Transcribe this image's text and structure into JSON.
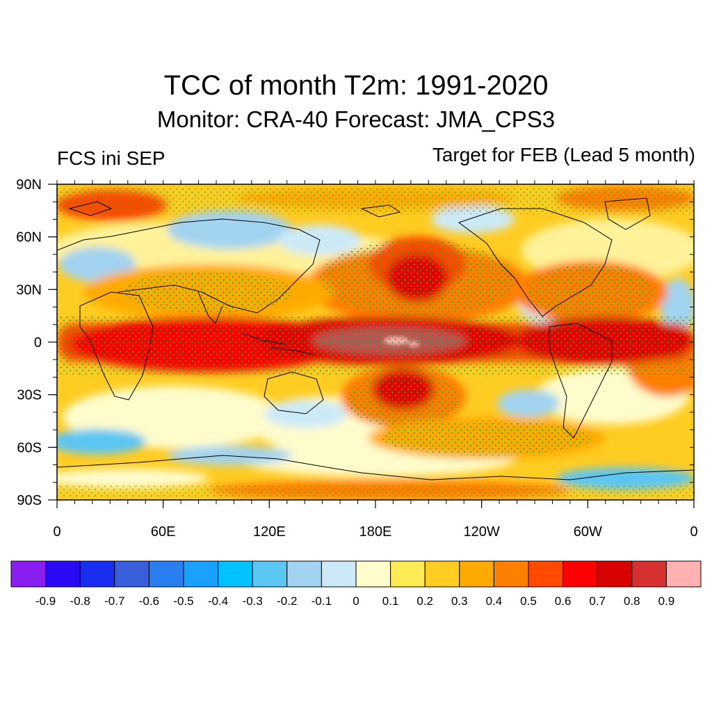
{
  "header": {
    "title": "TCC of month T2m: 1991-2020",
    "subtitle": "Monitor: CRA-40   Forecast: JMA_CPS3",
    "left_label": "FCS ini SEP",
    "right_label": "Target for FEB (Lead 5 month)"
  },
  "map": {
    "lat_ticks": [
      "90N",
      "60N",
      "30N",
      "0",
      "30S",
      "60S",
      "90S"
    ],
    "lon_ticks": [
      "0",
      "60E",
      "120E",
      "180E",
      "120W",
      "60W",
      "0"
    ],
    "stipple_color": "#22b022",
    "field_description_colors": {
      "tropics_peak": "#b85757",
      "strong_positive": "#e60000",
      "ocean_land_border": "#000000"
    }
  },
  "colorbar": {
    "levels": [
      "-0.9",
      "-0.8",
      "-0.7",
      "-0.6",
      "-0.5",
      "-0.4",
      "-0.3",
      "-0.2",
      "-0.1",
      "0",
      "0.1",
      "0.2",
      "0.3",
      "0.4",
      "0.5",
      "0.6",
      "0.7",
      "0.8",
      "0.9"
    ],
    "colors": [
      "#8a1ef0",
      "#2a0af5",
      "#1a2ef2",
      "#3a5fdd",
      "#2a7ff0",
      "#1aa0ff",
      "#00c2ff",
      "#5cc6f4",
      "#a2d3f0",
      "#cce9f8",
      "#fffccc",
      "#ffeb55",
      "#ffcc22",
      "#ffaa00",
      "#ff7f00",
      "#ff4a00",
      "#ff0000",
      "#d90000",
      "#d63030",
      "#ffb0b0"
    ]
  }
}
